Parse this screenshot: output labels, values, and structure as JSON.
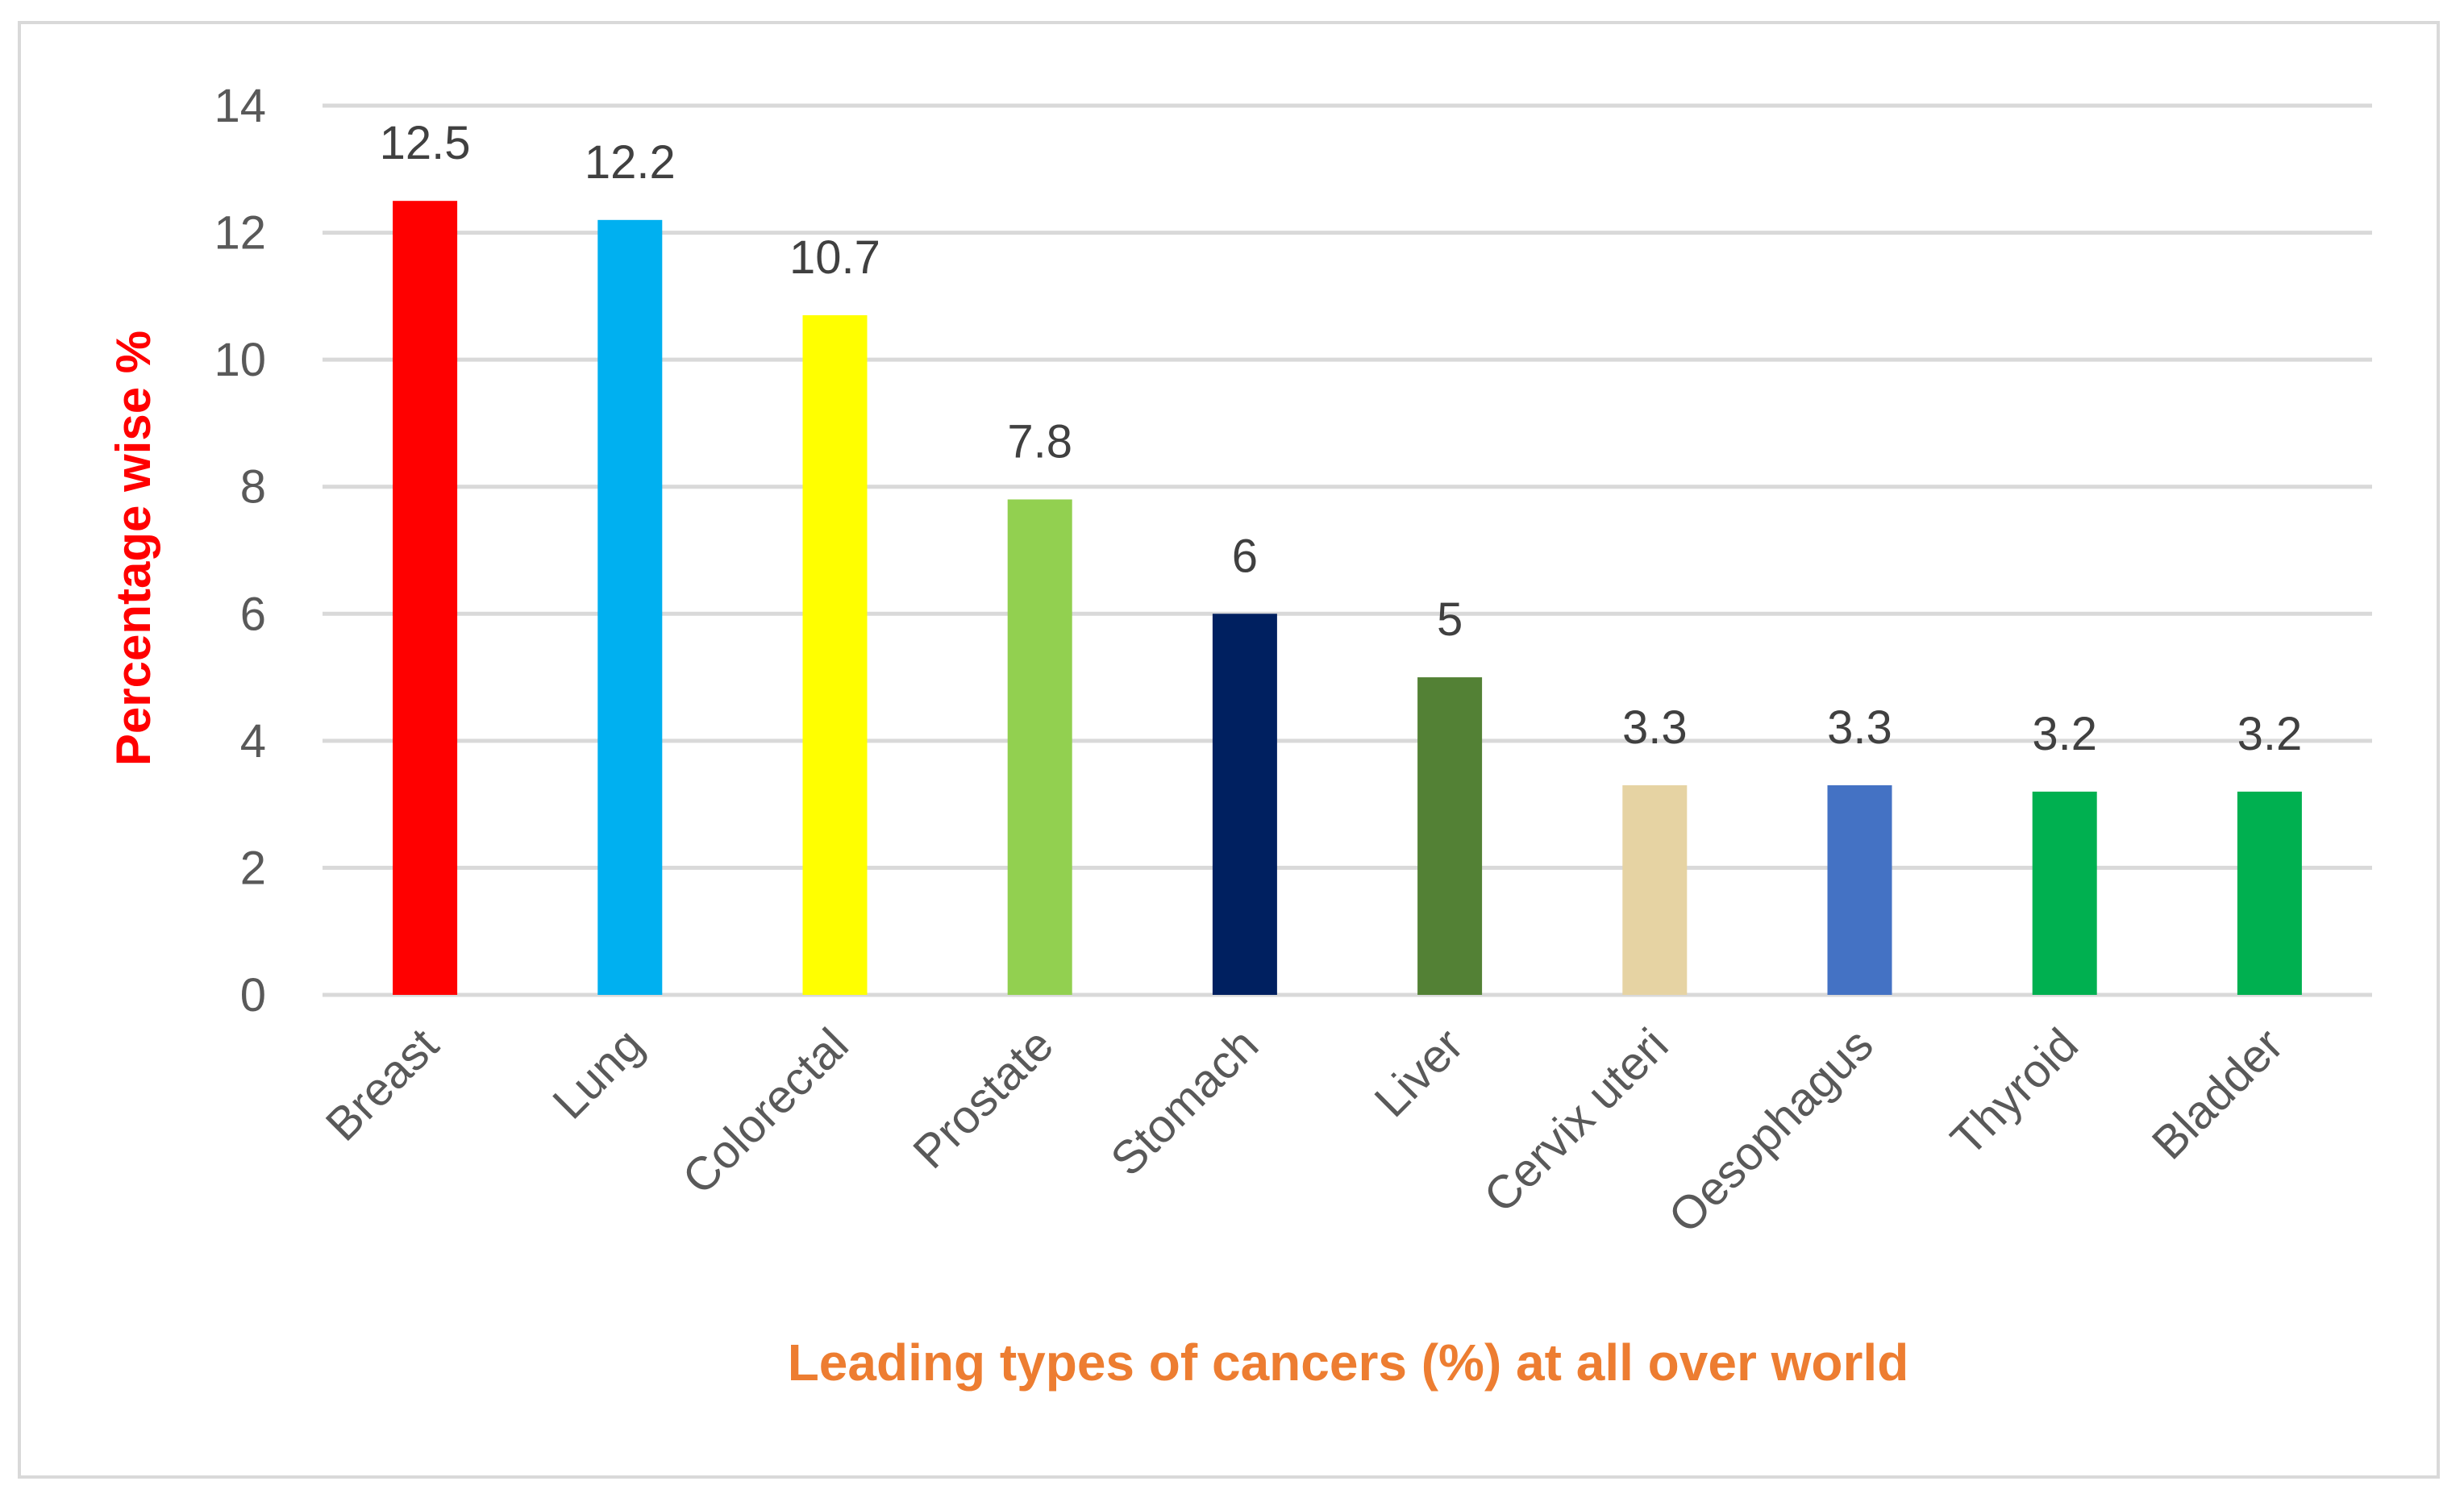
{
  "chart_data": {
    "type": "bar",
    "title": "",
    "xlabel": "Leading types of cancers (%) at all over world",
    "ylabel": "Percentage wise %",
    "ylim": [
      0,
      14
    ],
    "yticks": [
      0,
      2,
      4,
      6,
      8,
      10,
      12,
      14
    ],
    "grid": true,
    "categories": [
      "Breast",
      "Lung",
      "Colorectal",
      "Prostate",
      "Stomach",
      "Liver",
      "Cervix uteri",
      "Oesophagus",
      "Thyroid",
      "Bladder"
    ],
    "values": [
      12.5,
      12.2,
      10.7,
      7.8,
      6,
      5,
      3.3,
      3.3,
      3.2,
      3.2
    ],
    "data_labels": [
      "12.5",
      "12.2",
      "10.7",
      "7.8",
      "6",
      "5",
      "3.3",
      "3.3",
      "3.2",
      "3.2"
    ],
    "colors": [
      "#ff0000",
      "#00b0f0",
      "#ffff00",
      "#92d050",
      "#002060",
      "#538135",
      "#e6d3a3",
      "#4472c4",
      "#00b050",
      "#00b050"
    ],
    "ylabel_color": "#ff0000",
    "xlabel_color": "#ed7d31"
  }
}
